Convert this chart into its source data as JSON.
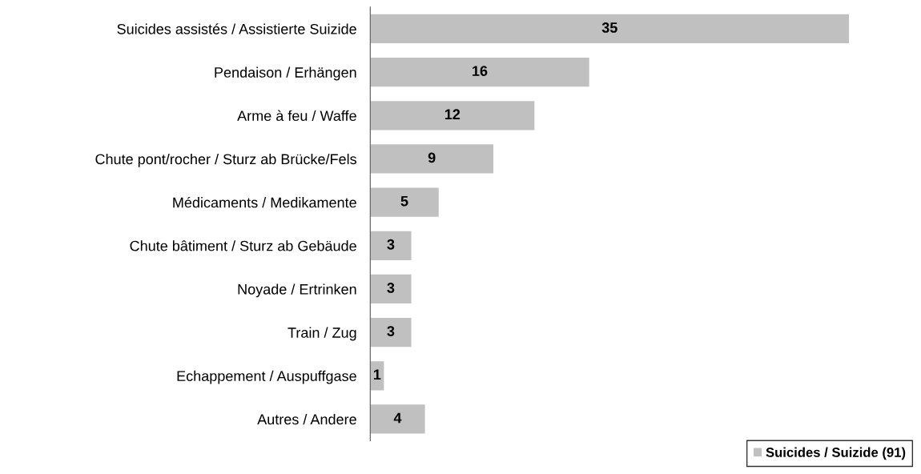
{
  "chart_data": {
    "type": "bar",
    "orientation": "horizontal",
    "categories": [
      "Suicides assistés / Assistierte Suizide",
      "Pendaison / Erhängen",
      "Arme à feu / Waffe",
      "Chute pont/rocher / Sturz ab Brücke/Fels",
      "Médicaments / Medikamente",
      "Chute bâtiment / Sturz ab Gebäude",
      "Noyade / Ertrinken",
      "Train / Zug",
      "Echappement / Auspuffgase",
      "Autres / Andere"
    ],
    "series": [
      {
        "name": "Suicides / Suizide (91)",
        "color": "#c0c0c0",
        "values": [
          35,
          16,
          12,
          9,
          5,
          3,
          3,
          3,
          1,
          4
        ]
      }
    ],
    "data_labels": true,
    "legend": "bottom right",
    "grid": false
  }
}
